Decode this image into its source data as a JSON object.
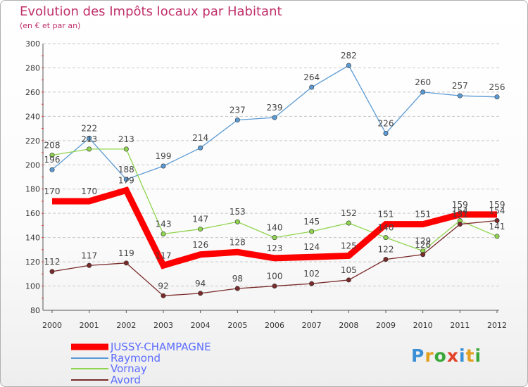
{
  "title": "Evolution des Impôts locaux par Habitant",
  "subtitle": "(en € et par an)",
  "logo_text": "Proxiti",
  "chart_data": {
    "type": "line",
    "x": [
      "2000",
      "2001",
      "2002",
      "2003",
      "2004",
      "2005",
      "2006",
      "2007",
      "2008",
      "2009",
      "2010",
      "2011",
      "2012"
    ],
    "ylim": [
      80,
      300
    ],
    "yticks": [
      80,
      100,
      120,
      140,
      160,
      180,
      200,
      220,
      240,
      260,
      280,
      300
    ],
    "grid": "horizontal dashed",
    "legend_position": "bottom-left",
    "series": [
      {
        "name": "Raymond",
        "color": "#5b9bd5",
        "values": [
          196,
          222,
          188,
          199,
          214,
          237,
          239,
          264,
          282,
          226,
          260,
          257,
          256
        ]
      },
      {
        "name": "Vornay",
        "color": "#8fd44e",
        "values": [
          208,
          213,
          213,
          143,
          147,
          153,
          140,
          145,
          152,
          140,
          129,
          154,
          141
        ]
      },
      {
        "name": "Avord",
        "color": "#7a2a2a",
        "values": [
          112,
          117,
          119,
          92,
          94,
          98,
          100,
          102,
          105,
          122,
          126,
          151,
          154
        ]
      },
      {
        "name": "JUSSY-CHAMPAGNE",
        "color": "#ff0000",
        "values": [
          170,
          170,
          179,
          117,
          126,
          128,
          123,
          124,
          125,
          151,
          151,
          159,
          159
        ]
      }
    ],
    "legend_order": [
      "JUSSY-CHAMPAGNE",
      "Raymond",
      "Vornay",
      "Avord"
    ]
  }
}
